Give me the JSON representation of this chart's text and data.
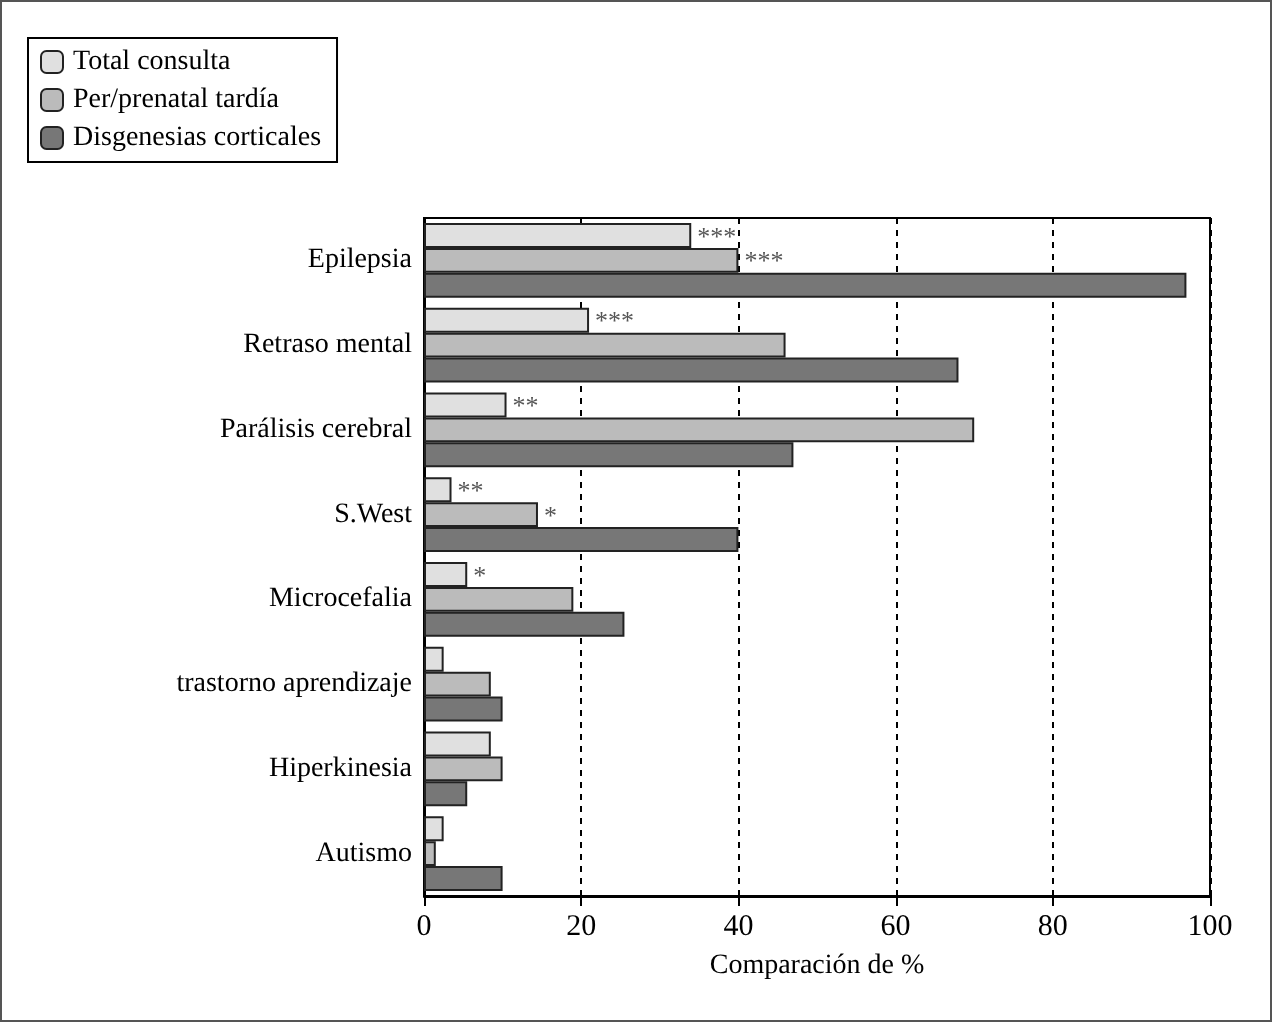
{
  "chart_data": {
    "type": "bar",
    "orientation": "horizontal",
    "xlabel": "Comparación de %",
    "categories": [
      "Epilepsia",
      "Retraso mental",
      "Parálisis cerebral",
      "S.West",
      "Microcefalia",
      "trastorno aprendizaje",
      "Hiperkinesia",
      "Autismo"
    ],
    "series": [
      {
        "name": "Total consulta",
        "color": "#e0e0e0",
        "values": [
          34,
          21,
          10.5,
          3.5,
          5.5,
          2.5,
          8.5,
          2.5
        ],
        "value_labels": [
          "***",
          "***",
          "**",
          "**",
          "*",
          null,
          null,
          null
        ]
      },
      {
        "name": "Per/prenatal tardía",
        "color": "#bbbbbb",
        "values": [
          40,
          46,
          70,
          14.5,
          19,
          8.5,
          10,
          1.5
        ],
        "value_labels": [
          "***",
          null,
          null,
          "*",
          null,
          null,
          null,
          null
        ]
      },
      {
        "name": "Disgenesias corticales",
        "color": "#777777",
        "values": [
          97,
          68,
          47,
          40,
          25.5,
          10,
          5.5,
          10
        ]
      }
    ],
    "xlim": [
      0,
      100
    ],
    "xticks": [
      0,
      20,
      40,
      60,
      80,
      100
    ],
    "grid": "x",
    "legend": "top left"
  }
}
